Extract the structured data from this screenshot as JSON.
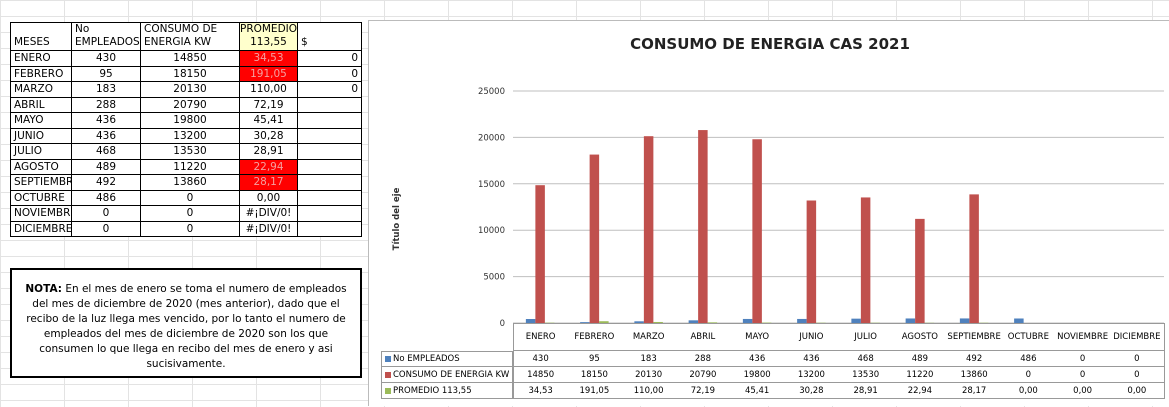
{
  "table": {
    "header": [
      "MESES",
      "No EMPLEADOS",
      "CONSUMO DE ENERGIA KW",
      "PROMEDIO 113,55",
      "$"
    ],
    "rows": [
      [
        "ENERO",
        "430",
        "14850",
        "34,53",
        "0"
      ],
      [
        "FEBRERO",
        "95",
        "18150",
        "191,05",
        "0"
      ],
      [
        "MARZO",
        "183",
        "20130",
        "110,00",
        "0"
      ],
      [
        "ABRIL",
        "288",
        "20790",
        "72,19"
      ],
      [
        "MAYO",
        "436",
        "19800",
        "45,41"
      ],
      [
        "JUNIO",
        "436",
        "13200",
        "30,28"
      ],
      [
        "JULIO",
        "468",
        "13530",
        "28,91"
      ],
      [
        "AGOSTO",
        "489",
        "11220",
        "22,94"
      ],
      [
        "SEPTIEMBRE",
        "492",
        "13860",
        "28,17"
      ],
      [
        "OCTUBRE",
        "486",
        "0",
        "0,00"
      ],
      [
        "NOVIEMBRE",
        "0",
        "0",
        "#¡DIV/0!"
      ],
      [
        "DICIEMBRE",
        "0",
        "0",
        "#¡DIV/0!"
      ]
    ],
    "red_rows": [
      0,
      1,
      7,
      8
    ],
    "red_color": "#ff0000"
  },
  "note": {
    "label": "NOTA:",
    "text": "En el mes de enero se toma el numero de empleados del mes de diciembre de 2020 (mes anterior), dado que el recibo de la luz llega mes vencido, por lo tanto el numero de empleados del mes de diciembre de 2020 son los que consumen lo que llega en recibo del mes de enero y asi sucisivamente."
  },
  "chart_data": {
    "type": "bar",
    "title": "CONSUMO DE ENERGIA CAS 2021",
    "ylabel": "Título del eje",
    "categories": [
      "ENERO",
      "FEBRERO",
      "MARZO",
      "ABRIL",
      "MAYO",
      "JUNIO",
      "JULIO",
      "AGOSTO",
      "SEPTIEMBRE",
      "OCTUBRE",
      "NOVIEMBRE",
      "DICIEMBRE"
    ],
    "series": [
      {
        "name": "No EMPLEADOS",
        "color": "#4f81bd",
        "values": [
          430,
          95,
          183,
          288,
          436,
          436,
          468,
          489,
          492,
          486,
          0,
          0
        ]
      },
      {
        "name": "CONSUMO DE ENERGIA KW",
        "color": "#c0504d",
        "values": [
          14850,
          18150,
          20130,
          20790,
          19800,
          13200,
          13530,
          11220,
          13860,
          0,
          0,
          0
        ]
      },
      {
        "name": "PROMEDIO 113,55",
        "color": "#9bbb59",
        "values": [
          34.53,
          191.05,
          110,
          72.19,
          45.41,
          30.28,
          28.91,
          22.94,
          28.17,
          0,
          0,
          0
        ],
        "value_labels": [
          "34,53",
          "191,05",
          "110,00",
          "72,19",
          "45,41",
          "30,28",
          "28,91",
          "22,94",
          "28,17",
          "0,00",
          "0,00",
          "0,00"
        ]
      }
    ],
    "ylim": [
      0,
      25000
    ],
    "yticks": [
      0,
      5000,
      10000,
      15000,
      20000,
      25000
    ],
    "grid": true
  }
}
